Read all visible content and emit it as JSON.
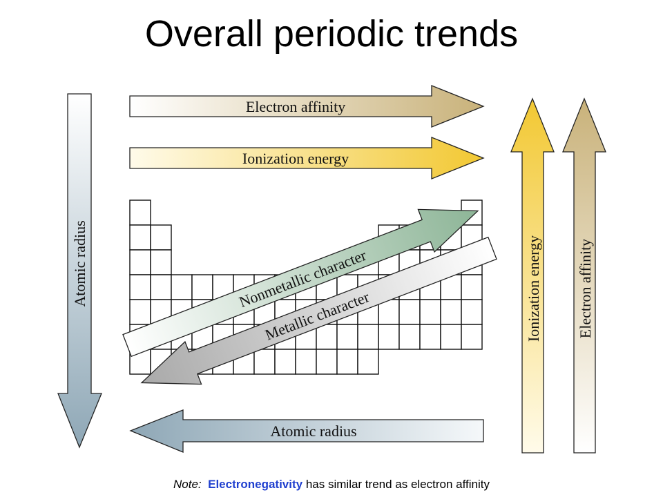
{
  "title": "Overall periodic trends",
  "arrows": {
    "electron_affinity_h": "Electron affinity",
    "ionization_energy_h": "Ionization energy",
    "atomic_radius_h": "Atomic radius",
    "atomic_radius_v": "Atomic radius",
    "ionization_energy_v": "Ionization energy",
    "electron_affinity_v": "Electron affinity",
    "nonmetallic": "Nonmetallic character",
    "metallic": "Metallic character"
  },
  "note": {
    "lead": "Note:",
    "term": "Electronegativity",
    "rest": "has similar trend as electron affinity"
  },
  "colors": {
    "electron_affinity": "#c8b27a",
    "ionization_energy": "#f3cc3a",
    "atomic_radius": "#8fa9b8",
    "nonmetallic": "#8fb79b",
    "metallic": "#b0b0b0"
  }
}
